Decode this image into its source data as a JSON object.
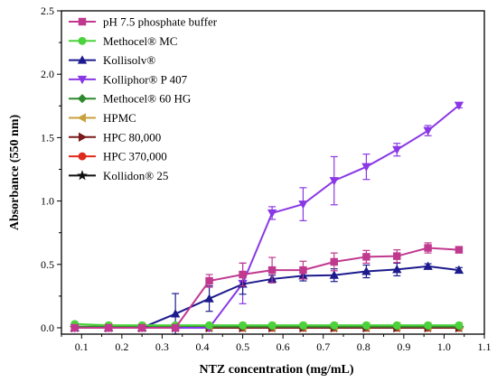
{
  "chart_data": {
    "type": "line",
    "title": "",
    "xlabel": "NTZ concentration (mg/mL)",
    "ylabel": "Absorbance (550 nm)",
    "xlim": [
      0.05,
      1.1
    ],
    "ylim": [
      -0.05,
      2.5
    ],
    "x_ticks": [
      "0.1",
      "0.2",
      "0.3",
      "0.4",
      "0.5",
      "0.6",
      "0.7",
      "0.8",
      "0.9",
      "1.0",
      "1.1"
    ],
    "y_ticks": [
      "0.0",
      "0.5",
      "1.0",
      "1.5",
      "2.0",
      "2.5"
    ],
    "legend_position": "top-left",
    "grid": false,
    "x": [
      0.083,
      0.167,
      0.25,
      0.333,
      0.417,
      0.5,
      0.573,
      0.65,
      0.727,
      0.807,
      0.883,
      0.96,
      1.037
    ],
    "series": [
      {
        "name": "pH 7.5 phosphate buffer",
        "color": "#c0398f",
        "marker": "square",
        "values": [
          0.0,
          0.0,
          0.0,
          0.0,
          0.37,
          0.42,
          0.455,
          0.455,
          0.52,
          0.56,
          0.565,
          0.63,
          0.615
        ],
        "errors": [
          0.0,
          0.0,
          0.0,
          0.0,
          0.05,
          0.09,
          0.1,
          0.07,
          0.07,
          0.05,
          0.05,
          0.04,
          0.02
        ]
      },
      {
        "name": "Methocel® MC",
        "color": "#4cd23c",
        "marker": "circle",
        "values": [
          0.03,
          0.02,
          0.02,
          0.02,
          0.02,
          0.02,
          0.02,
          0.02,
          0.02,
          0.02,
          0.02,
          0.02,
          0.02
        ],
        "errors": [
          0,
          0,
          0,
          0,
          0,
          0,
          0,
          0,
          0,
          0,
          0,
          0,
          0
        ]
      },
      {
        "name": "Kollisolv®",
        "color": "#1c1a8c",
        "marker": "triangle-up",
        "values": [
          0.0,
          0.0,
          0.0,
          0.11,
          0.23,
          0.345,
          0.385,
          0.41,
          0.415,
          0.445,
          0.46,
          0.485,
          0.455
        ],
        "errors": [
          0.0,
          0.0,
          0.0,
          0.16,
          0.1,
          0.08,
          0.03,
          0.04,
          0.05,
          0.05,
          0.05,
          0.02,
          0.02
        ]
      },
      {
        "name": "Kolliphor® P 407",
        "color": "#8a38e6",
        "marker": "triangle-down",
        "values": [
          0.0,
          0.0,
          0.0,
          0.0,
          0.0,
          0.35,
          0.905,
          0.975,
          1.16,
          1.27,
          1.405,
          1.555,
          1.755
        ],
        "errors": [
          0.0,
          0.0,
          0.0,
          0.0,
          0.0,
          0.16,
          0.05,
          0.13,
          0.19,
          0.1,
          0.05,
          0.04,
          0.02
        ]
      },
      {
        "name": "Methocel® 60 HG",
        "color": "#2e8a2e",
        "marker": "diamond",
        "values": [
          0.01,
          0.01,
          0.01,
          0.01,
          0.01,
          0.01,
          0.01,
          0.01,
          0.01,
          0.01,
          0.01,
          0.01,
          0.01
        ],
        "errors": [
          0,
          0,
          0,
          0,
          0,
          0,
          0,
          0,
          0,
          0,
          0,
          0,
          0
        ]
      },
      {
        "name": "HPMC",
        "color": "#c9a13c",
        "marker": "triangle-left",
        "values": [
          0.01,
          0.01,
          0.01,
          0.01,
          0.01,
          0.01,
          0.01,
          0.01,
          0.01,
          0.01,
          0.01,
          0.01,
          0.01
        ],
        "errors": [
          0,
          0,
          0,
          0,
          0,
          0,
          0,
          0,
          0,
          0,
          0,
          0,
          0
        ]
      },
      {
        "name": "HPC 80,000",
        "color": "#7a1a1a",
        "marker": "triangle-right",
        "values": [
          0.0,
          0.0,
          0.0,
          0.0,
          0.0,
          0.0,
          0.0,
          0.0,
          0.0,
          0.0,
          0.0,
          0.0,
          0.0
        ],
        "errors": [
          0,
          0,
          0,
          0,
          0,
          0,
          0,
          0,
          0,
          0,
          0,
          0,
          0
        ]
      },
      {
        "name": "HPC 370,000",
        "color": "#e02a1e",
        "marker": "circle",
        "values": [
          0.0,
          0.0,
          0.0,
          0.0,
          0.0,
          0.0,
          0.0,
          0.0,
          0.0,
          0.0,
          0.0,
          0.0,
          0.0
        ],
        "errors": [
          0,
          0,
          0,
          0,
          0,
          0,
          0,
          0,
          0,
          0,
          0,
          0,
          0
        ]
      },
      {
        "name": "Kollidon® 25",
        "color": "#111111",
        "marker": "star",
        "values": [
          0.0,
          0.0,
          0.0,
          0.0,
          0.0,
          0.0,
          0.0,
          0.0,
          0.0,
          0.0,
          0.0,
          0.0,
          0.0
        ],
        "errors": [
          0,
          0,
          0,
          0,
          0,
          0,
          0,
          0,
          0,
          0,
          0,
          0,
          0
        ]
      }
    ]
  }
}
